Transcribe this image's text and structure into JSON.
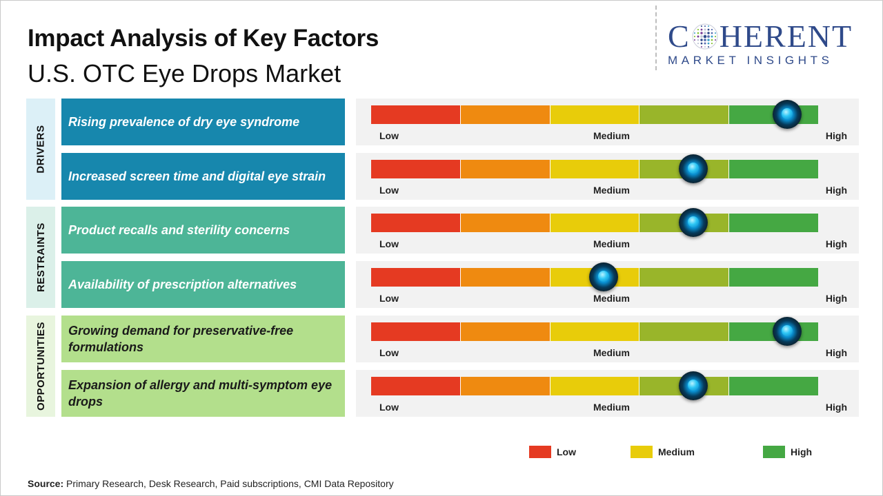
{
  "title": "Impact Analysis of Key Factors",
  "subtitle": "U.S. OTC Eye Drops Market",
  "logo": {
    "word_left": "C",
    "word_right": "HERENT",
    "tagline": "MARKET INSIGHTS"
  },
  "groups": {
    "drivers": "DRIVERS",
    "restraints": "RESTRAINTS",
    "opportunities": "OPPORTUNITIES"
  },
  "scale": {
    "low": "Low",
    "medium": "Medium",
    "high": "High"
  },
  "colors": {
    "drivers_group": "#dcf0f7",
    "drivers_factor": "#1787ad",
    "restraints_group": "#dbf0e9",
    "restraints_factor": "#4db597",
    "opportunities_group": "#e8f5de",
    "opportunities_factor": "#b3df8c",
    "segments": [
      "#e53a22",
      "#ef8a10",
      "#e8cc0a",
      "#99b52a",
      "#45a843"
    ]
  },
  "chart_data": {
    "type": "gauge",
    "scale_min": 0,
    "scale_max": 1,
    "factors": [
      {
        "group": "DRIVERS",
        "label": "Rising prevalence of dry eye syndrome",
        "impact": 0.93
      },
      {
        "group": "DRIVERS",
        "label": "Increased screen time and digital eye strain",
        "impact": 0.72
      },
      {
        "group": "RESTRAINTS",
        "label": "Product recalls and sterility concerns",
        "impact": 0.72
      },
      {
        "group": "RESTRAINTS",
        "label": "Availability of prescription alternatives",
        "impact": 0.52
      },
      {
        "group": "OPPORTUNITIES",
        "label": "Growing demand for preservative-free formulations",
        "impact": 0.93
      },
      {
        "group": "OPPORTUNITIES",
        "label": "Expansion of allergy and multi-symptom eye drops",
        "impact": 0.72
      }
    ],
    "legend": [
      {
        "label": "Low",
        "color": "#e53a22"
      },
      {
        "label": "Medium",
        "color": "#e8cc0a"
      },
      {
        "label": "High",
        "color": "#45a843"
      }
    ]
  },
  "source": {
    "label": "Source:",
    "text": " Primary Research, Desk Research, Paid subscriptions, CMI Data Repository"
  }
}
